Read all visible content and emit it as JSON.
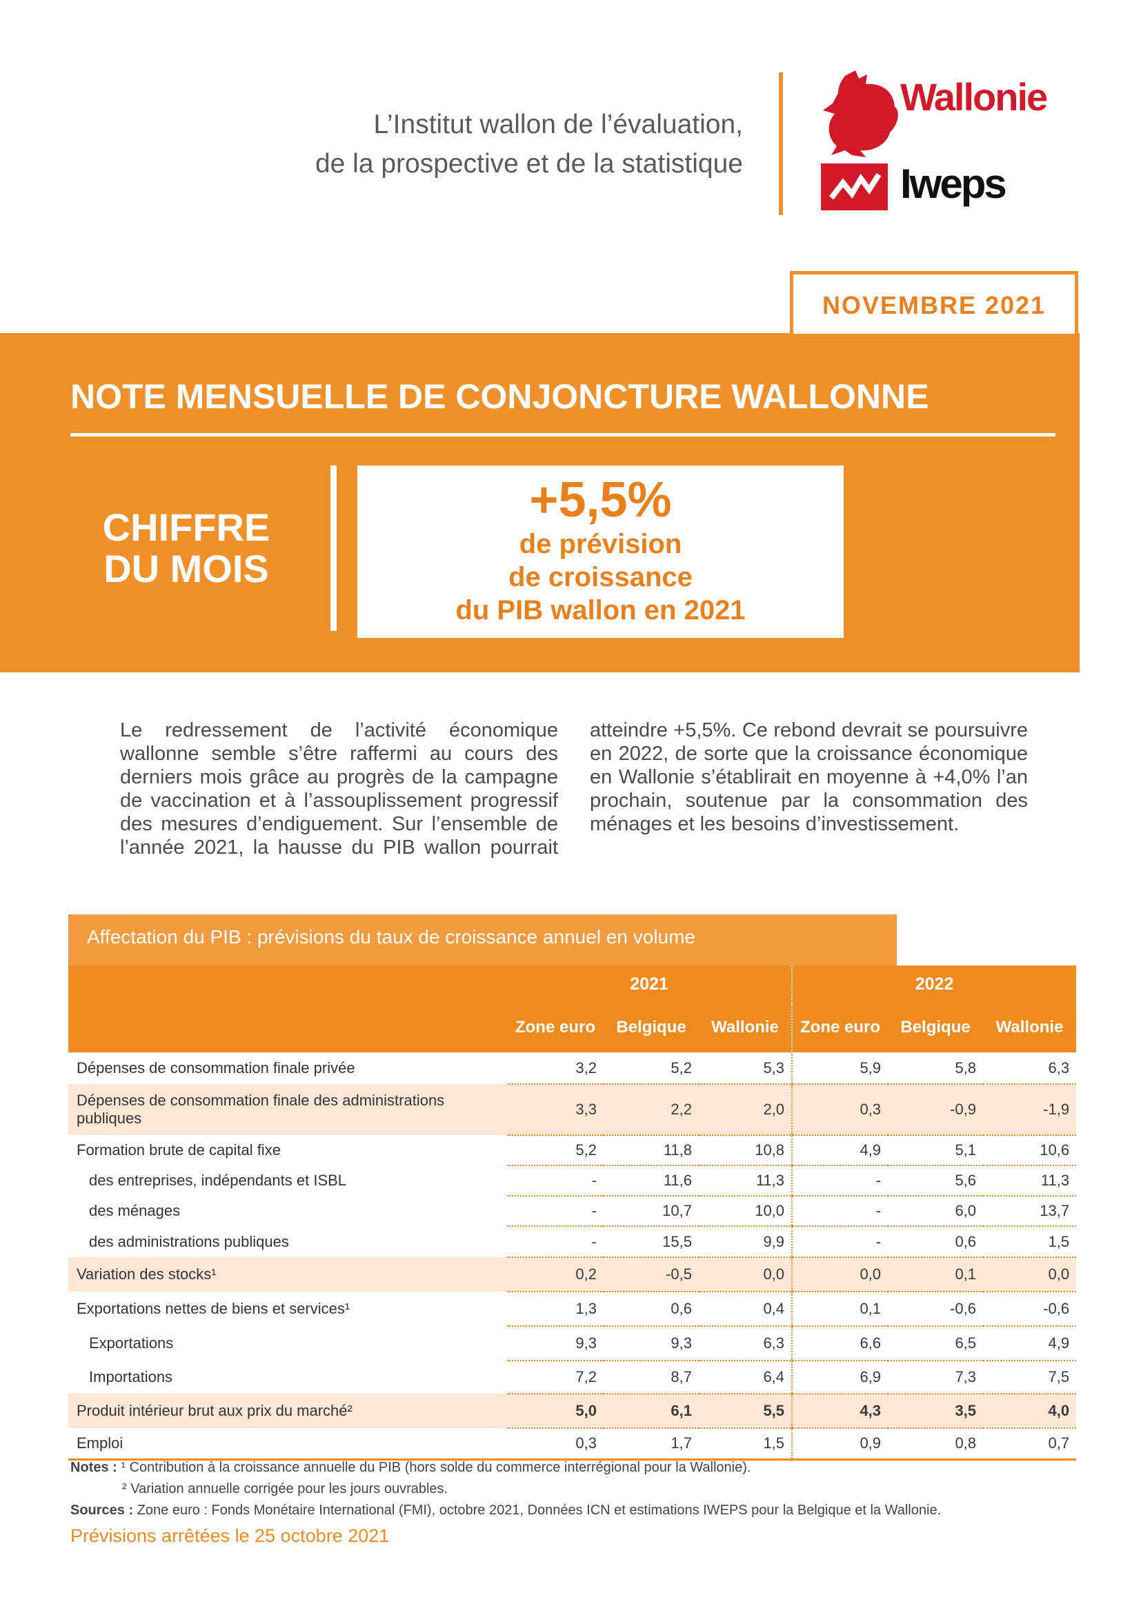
{
  "header": {
    "institute": [
      "L’Institut wallon de l’évaluation,",
      "de la prospective et de la statistique"
    ],
    "logo_wallonie": "Wallonie",
    "logo_iweps": "Iweps"
  },
  "date": "NOVEMBRE 2021",
  "title": "NOTE MENSUELLE DE CONJONCTURE WALLONNE",
  "figure": {
    "label": [
      "CHIFFRE",
      "DU MOIS"
    ],
    "value": "+5,5%",
    "description": [
      "de prévision",
      "de croissance",
      "du PIB wallon en 2021"
    ]
  },
  "body": "Le redressement de l’activité économique wallonne semble s’être raffermi au cours des derniers mois grâce au progrès de la campagne de vaccination et à l’assouplissement progressif des mesures d’endiguement. Sur l’ensemble de l’année 2021, la hausse du PIB wallon pourrait atteindre +5,5%. Ce rebond devrait se poursuivre en 2022, de sorte que la croissance économique en Wallonie s’établirait en moyenne à +4,0% l’an prochain, soutenue par la consommation des ménages et les besoins d’investissement.",
  "table": {
    "caption": "Affectation du PIB : prévisions du taux de croissance annuel en volume",
    "years": [
      "2021",
      "2022"
    ],
    "columns": [
      "Zone euro",
      "Belgique",
      "Wallonie",
      "Zone euro",
      "Belgique",
      "Wallonie"
    ],
    "rows": [
      {
        "label": "Dépenses de consommation finale privée",
        "values": [
          "3,2",
          "5,2",
          "5,3",
          "5,9",
          "5,8",
          "6,3"
        ]
      },
      {
        "label": "Dépenses de consommation finale des administrations publiques",
        "shaded": true,
        "values": [
          "3,3",
          "2,2",
          "2,0",
          "0,3",
          "-0,9",
          "-1,9"
        ]
      },
      {
        "label": "Formation brute de capital fixe",
        "values": [
          "5,2",
          "11,8",
          "10,8",
          "4,9",
          "5,1",
          "10,6"
        ]
      },
      {
        "label": "des entreprises, indépendants et ISBL",
        "indent": 1,
        "values": [
          "-",
          "11,6",
          "11,3",
          "-",
          "5,6",
          "11,3"
        ]
      },
      {
        "label": "des ménages",
        "indent": 1,
        "values": [
          "-",
          "10,7",
          "10,0",
          "-",
          "6,0",
          "13,7"
        ]
      },
      {
        "label": "des administrations publiques",
        "indent": 1,
        "values": [
          "-",
          "15,5",
          "9,9",
          "-",
          "0,6",
          "1,5"
        ]
      },
      {
        "label": "Variation des stocks¹",
        "shaded": true,
        "values": [
          "0,2",
          "-0,5",
          "0,0",
          "0,0",
          "0,1",
          "0,0"
        ]
      },
      {
        "label": "Exportations nettes de biens et services¹",
        "values": [
          "1,3",
          "0,6",
          "0,4",
          "0,1",
          "-0,6",
          "-0,6"
        ]
      },
      {
        "label": "Exportations",
        "indent": 1,
        "values": [
          "9,3",
          "9,3",
          "6,3",
          "6,6",
          "6,5",
          "4,9"
        ]
      },
      {
        "label": "Importations",
        "indent": 1,
        "values": [
          "7,2",
          "8,7",
          "6,4",
          "6,9",
          "7,3",
          "7,5"
        ]
      },
      {
        "label": "Produit intérieur brut aux prix du marché²",
        "shaded": true,
        "bold": true,
        "values": [
          "5,0",
          "6,1",
          "5,5",
          "4,3",
          "3,5",
          "4,0"
        ]
      },
      {
        "label": "Emploi",
        "values": [
          "0,3",
          "1,7",
          "1,5",
          "0,9",
          "0,8",
          "0,7"
        ]
      }
    ]
  },
  "notes": {
    "label": "Notes :",
    "lines": [
      "¹ Contribution à la croissance annuelle du PIB (hors solde du commerce interrégional pour la Wallonie).",
      "² Variation annuelle corrigée pour les jours ouvrables."
    ]
  },
  "sources": {
    "label": "Sources :",
    "text": "Zone euro : Fonds Monétaire International (FMI), octobre 2021, Données ICN et estimations IWEPS pour la Belgique et la Wallonie."
  },
  "footer": "Prévisions arrêtées le 25 octobre 2021"
}
